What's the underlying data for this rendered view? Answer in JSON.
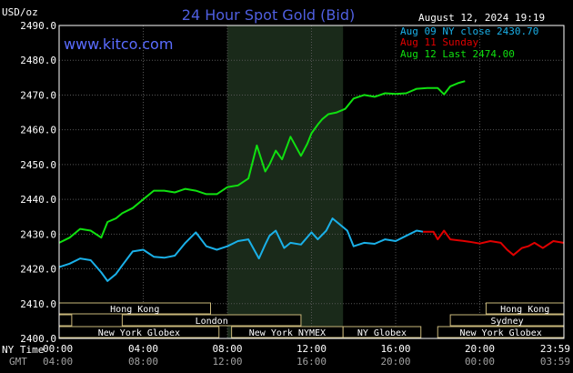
{
  "chart_data": {
    "type": "line",
    "title": "24 Hour Spot Gold (Bid)",
    "website": "www.kitco.com",
    "unit_label": "USD/oz",
    "timestamp": "August 12, 2024 19:19",
    "ylim": [
      2400,
      2490
    ],
    "y_ticks": [
      "2490.0",
      "2480.0",
      "2470.0",
      "2460.0",
      "2450.0",
      "2440.0",
      "2430.0",
      "2420.0",
      "2410.0",
      "2400.0"
    ],
    "x_label_ny": "NY Time",
    "x_label_gmt": "GMT",
    "x_ticks_ny": [
      "00:00",
      "04:00",
      "08:00",
      "12:00",
      "16:00",
      "20:00",
      "23:59"
    ],
    "x_ticks_gmt": [
      "04:00",
      "08:00",
      "12:00",
      "16:00",
      "20:00",
      "00:00",
      "03:59"
    ],
    "shaded_region_hours": [
      8,
      13.5
    ],
    "grid": true,
    "legend_position": "top-right",
    "colors": {
      "aug09": "#1ab0e8",
      "aug11": "#e00000",
      "aug12": "#10e010",
      "title": "#4f5fe0"
    },
    "series": [
      {
        "name": "Aug 09 NY close 2430.70",
        "color": "#1ab0e8",
        "x": [
          0,
          0.5,
          1,
          1.5,
          2,
          2.3,
          2.7,
          3,
          3.5,
          4,
          4.5,
          5,
          5.5,
          6,
          6.5,
          7,
          7.5,
          8,
          8.5,
          9,
          9.5,
          9.8,
          10,
          10.3,
          10.7,
          11,
          11.5,
          12,
          12.3,
          12.7,
          13,
          13.3,
          13.7,
          14,
          14.5,
          15,
          15.5,
          16,
          16.5,
          17,
          17.3
        ],
        "y": [
          2420.5,
          2421.5,
          2423,
          2422.5,
          2419,
          2416.5,
          2418.5,
          2421,
          2425,
          2425.5,
          2423.5,
          2423.2,
          2423.8,
          2427.5,
          2430.5,
          2426.5,
          2425.5,
          2426.5,
          2428,
          2428.5,
          2423,
          2427,
          2429.5,
          2431,
          2426,
          2427.5,
          2427,
          2430.5,
          2428.5,
          2431,
          2434.5,
          2433,
          2431,
          2426.5,
          2427.5,
          2427.2,
          2428.5,
          2428,
          2429.5,
          2431,
          2430.7
        ]
      },
      {
        "name": "Aug 11 Sunday",
        "color": "#e00000",
        "x": [
          17.3,
          17.8,
          18,
          18.3,
          18.6,
          19,
          19.5,
          20,
          20.5,
          21,
          21.3,
          21.6,
          22,
          22.3,
          22.6,
          23,
          23.5,
          23.98
        ],
        "y": [
          2430.7,
          2430.7,
          2428.5,
          2431,
          2428.5,
          2428.2,
          2427.8,
          2427.3,
          2428,
          2427.5,
          2425.5,
          2424,
          2426,
          2426.5,
          2427.5,
          2426,
          2428,
          2427.5
        ]
      },
      {
        "name": "Aug 12 Last 2474.00",
        "color": "#10e010",
        "x": [
          0,
          0.5,
          1,
          1.5,
          2,
          2.3,
          2.7,
          3,
          3.5,
          4,
          4.5,
          5,
          5.5,
          6,
          6.5,
          7,
          7.5,
          8,
          8.5,
          9,
          9.4,
          9.8,
          10,
          10.3,
          10.6,
          11,
          11.5,
          11.8,
          12,
          12.3,
          12.5,
          12.8,
          13.2,
          13.6,
          14,
          14.5,
          15,
          15.5,
          16,
          16.5,
          17,
          17.5,
          18,
          18.3,
          18.6,
          19,
          19.3
        ],
        "y": [
          2427.5,
          2429,
          2431.5,
          2431,
          2429,
          2433.5,
          2434.5,
          2436,
          2437.5,
          2440,
          2442.5,
          2442.5,
          2442,
          2443,
          2442.5,
          2441.5,
          2441.5,
          2443.5,
          2444,
          2446,
          2455.5,
          2448,
          2450,
          2454,
          2451.5,
          2458,
          2452.5,
          2456,
          2459,
          2461.5,
          2463,
          2464.5,
          2465,
          2466,
          2469,
          2470,
          2469.5,
          2470.5,
          2470.3,
          2470.5,
          2471.8,
          2472,
          2472,
          2470.2,
          2472.5,
          2473.5,
          2474
        ]
      }
    ]
  },
  "exchanges": [
    {
      "name": "Hong Kong",
      "start": 0,
      "end": 7.2,
      "row": 0
    },
    {
      "name": "Hong Kong",
      "start": 20.3,
      "end": 24,
      "row": 0
    },
    {
      "name": "London",
      "start": 0,
      "end": 0.6,
      "row": 1
    },
    {
      "name": "London",
      "start": 3,
      "end": 11.5,
      "row": 1
    },
    {
      "name": "Sydney",
      "start": 18.6,
      "end": 24,
      "row": 1
    },
    {
      "name": "New York Globex",
      "start": 0,
      "end": 7.6,
      "row": 2
    },
    {
      "name": "New York NYMEX",
      "start": 8.2,
      "end": 13.5,
      "row": 2
    },
    {
      "name": "NY Globex",
      "start": 13.5,
      "end": 17.2,
      "row": 2
    },
    {
      "name": "New York Globex",
      "start": 18,
      "end": 24,
      "row": 2
    }
  ]
}
